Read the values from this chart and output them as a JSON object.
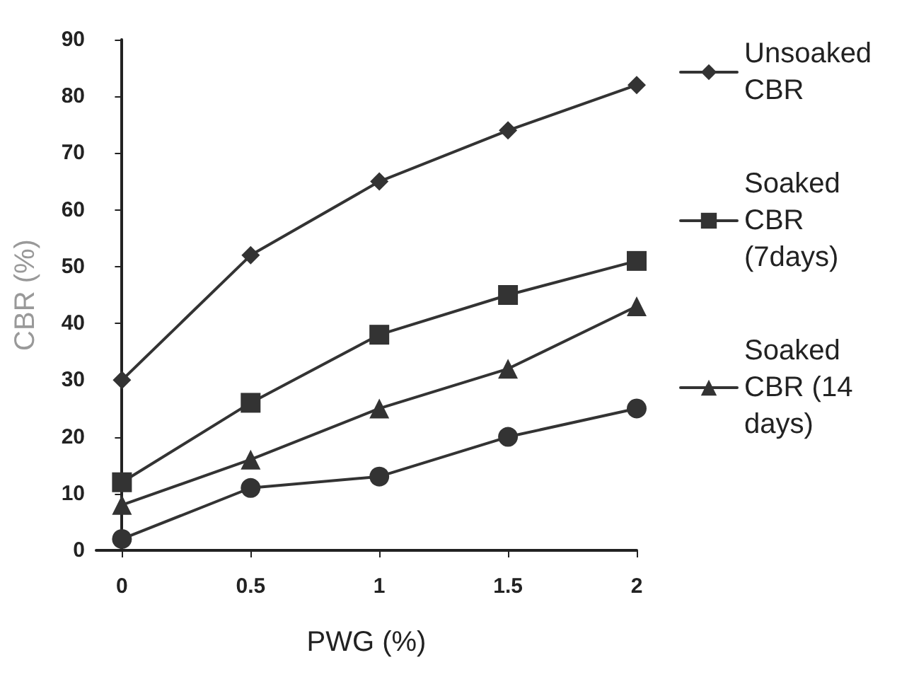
{
  "chart_data": {
    "type": "line",
    "xlabel": "PWG (%)",
    "ylabel": "CBR (%)",
    "x": [
      0,
      0.5,
      1,
      1.5,
      2
    ],
    "xlim": [
      -0.1,
      2
    ],
    "xticks": [
      0,
      0.5,
      1,
      1.5,
      2
    ],
    "ylim": [
      0,
      90
    ],
    "yticks": [
      0,
      10,
      20,
      30,
      40,
      50,
      60,
      70,
      80,
      90
    ],
    "grid": false,
    "legend": "right",
    "line_style": "solid",
    "series": [
      {
        "name": "Unsoaked CBR",
        "color": "#333333",
        "marker": "diamond",
        "values": [
          30,
          52,
          65,
          74,
          82
        ]
      },
      {
        "name": "Soaked CBR (7days)",
        "color": "#333333",
        "marker": "square",
        "values": [
          12,
          26,
          38,
          45,
          51
        ]
      },
      {
        "name": "Soaked CBR (14 days)",
        "color": "#333333",
        "marker": "triangle",
        "values": [
          8,
          16,
          25,
          32,
          43
        ]
      },
      {
        "color": "#333333",
        "marker": "circle",
        "values": [
          2,
          11,
          13,
          20,
          25
        ]
      }
    ]
  }
}
